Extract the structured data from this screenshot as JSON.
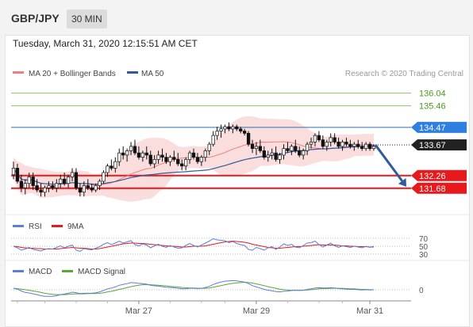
{
  "header": {
    "symbol": "GBP/JPY",
    "timeframe": "30 MIN",
    "timestamp": "Tuesday, March 31, 2020 12:15:51 AM CET"
  },
  "legend": {
    "ma20": "MA 20 + Bollinger Bands",
    "ma50": "MA 50",
    "credit": "Research © 2020 Trading Central",
    "rsi": "RSI",
    "rsi9": "9MA",
    "macd": "MACD",
    "macd_signal": "MACD Signal"
  },
  "colors": {
    "ma20": "#f08080",
    "ma50": "#2f5b9a",
    "bands": "#fadada",
    "resistance": "#8dc26f",
    "resistance_text": "#4a9a1c",
    "pivot": "#2f6fb0",
    "pivot_tag": "#2f7fe0",
    "support": "#e8191c",
    "last_tag": "#222222",
    "rsi": "#5b7ed6",
    "rsi9": "#e8191c",
    "macd": "#5b7ed6",
    "macd_signal": "#5aa83a",
    "candle": "#111111",
    "arrow": "#2f5b9a"
  },
  "chart_data": {
    "type": "candlestick",
    "price_range": [
      130.8,
      136.5
    ],
    "levels": {
      "resistance_2": "136.04",
      "resistance_1": "135.46",
      "pivot": "134.47",
      "last": "133.67",
      "support_1": "132.26",
      "support_2": "131.68"
    },
    "rsi_levels": [
      "70",
      "50",
      "30"
    ],
    "macd_zero_label": "0",
    "x_labels": [
      "Mar 27",
      "Mar 29",
      "Mar 31"
    ],
    "forecast": "bearish",
    "candles": [
      [
        132.3,
        132.9,
        132.1,
        132.6
      ],
      [
        132.6,
        132.8,
        131.9,
        132.0
      ],
      [
        132.0,
        132.3,
        131.5,
        131.7
      ],
      [
        131.7,
        132.1,
        131.4,
        131.9
      ],
      [
        131.9,
        132.4,
        131.7,
        132.2
      ],
      [
        132.2,
        132.4,
        131.6,
        131.8
      ],
      [
        131.8,
        132.1,
        131.5,
        131.6
      ],
      [
        131.6,
        131.9,
        131.3,
        131.5
      ],
      [
        131.5,
        131.8,
        131.3,
        131.7
      ],
      [
        131.7,
        132.0,
        131.5,
        131.8
      ],
      [
        131.8,
        132.0,
        131.6,
        131.7
      ],
      [
        131.7,
        132.1,
        131.5,
        131.9
      ],
      [
        131.9,
        132.3,
        131.7,
        132.1
      ],
      [
        132.1,
        132.4,
        131.8,
        131.9
      ],
      [
        131.9,
        132.3,
        131.7,
        132.2
      ],
      [
        132.2,
        132.6,
        132.0,
        132.4
      ],
      [
        132.4,
        132.6,
        131.6,
        131.7
      ],
      [
        131.7,
        131.9,
        131.3,
        131.5
      ],
      [
        131.5,
        132.0,
        131.3,
        131.8
      ],
      [
        131.8,
        132.1,
        131.6,
        131.7
      ],
      [
        131.7,
        131.9,
        131.5,
        131.6
      ],
      [
        131.6,
        131.9,
        131.5,
        131.8
      ],
      [
        131.8,
        132.1,
        131.6,
        132.0
      ],
      [
        132.0,
        132.5,
        131.9,
        132.4
      ],
      [
        132.4,
        132.8,
        132.2,
        132.7
      ],
      [
        132.7,
        133.0,
        132.5,
        132.6
      ],
      [
        132.6,
        133.1,
        132.4,
        132.9
      ],
      [
        132.9,
        133.5,
        132.7,
        133.3
      ],
      [
        133.3,
        133.6,
        133.0,
        133.2
      ],
      [
        133.2,
        133.5,
        132.9,
        133.4
      ],
      [
        133.4,
        133.8,
        133.2,
        133.6
      ],
      [
        133.6,
        133.9,
        133.2,
        133.3
      ],
      [
        133.3,
        133.6,
        133.0,
        133.1
      ],
      [
        133.1,
        133.4,
        132.9,
        133.3
      ],
      [
        133.3,
        133.6,
        133.0,
        133.2
      ],
      [
        133.2,
        133.4,
        132.7,
        132.8
      ],
      [
        132.8,
        133.2,
        132.6,
        133.0
      ],
      [
        133.0,
        133.4,
        132.8,
        133.2
      ],
      [
        133.2,
        133.5,
        132.9,
        133.1
      ],
      [
        133.1,
        133.3,
        132.8,
        132.9
      ],
      [
        132.9,
        133.2,
        132.7,
        133.1
      ],
      [
        133.1,
        133.4,
        132.9,
        133.0
      ],
      [
        133.0,
        133.3,
        132.7,
        132.8
      ],
      [
        132.8,
        133.0,
        132.5,
        132.7
      ],
      [
        132.7,
        133.1,
        132.5,
        133.0
      ],
      [
        133.0,
        133.4,
        132.8,
        133.3
      ],
      [
        133.3,
        133.5,
        133.0,
        133.1
      ],
      [
        133.1,
        133.3,
        132.8,
        132.9
      ],
      [
        132.9,
        133.2,
        132.7,
        133.1
      ],
      [
        133.1,
        133.5,
        132.9,
        133.4
      ],
      [
        133.4,
        133.8,
        133.2,
        133.7
      ],
      [
        133.7,
        134.3,
        133.6,
        134.1
      ],
      [
        134.1,
        134.5,
        133.9,
        134.3
      ],
      [
        134.3,
        134.6,
        134.0,
        134.4
      ],
      [
        134.4,
        134.6,
        134.2,
        134.5
      ],
      [
        134.5,
        134.7,
        134.3,
        134.4
      ],
      [
        134.4,
        134.6,
        134.2,
        134.5
      ],
      [
        134.5,
        134.6,
        134.3,
        134.4
      ],
      [
        134.4,
        134.5,
        134.2,
        134.3
      ],
      [
        134.3,
        134.4,
        134.1,
        134.2
      ],
      [
        134.2,
        134.3,
        133.6,
        133.7
      ],
      [
        133.7,
        133.9,
        133.3,
        133.5
      ],
      [
        133.5,
        133.8,
        133.2,
        133.6
      ],
      [
        133.6,
        133.9,
        133.3,
        133.4
      ],
      [
        133.4,
        133.6,
        133.0,
        133.1
      ],
      [
        133.1,
        133.4,
        132.9,
        133.2
      ],
      [
        133.2,
        133.5,
        133.0,
        133.3
      ],
      [
        133.3,
        133.6,
        132.9,
        133.0
      ],
      [
        133.0,
        133.3,
        132.8,
        133.2
      ],
      [
        133.2,
        133.7,
        133.0,
        133.5
      ],
      [
        133.5,
        133.8,
        133.3,
        133.4
      ],
      [
        133.4,
        133.7,
        133.2,
        133.6
      ],
      [
        133.6,
        133.9,
        133.3,
        133.4
      ],
      [
        133.4,
        133.6,
        133.1,
        133.2
      ],
      [
        133.2,
        133.5,
        133.0,
        133.4
      ],
      [
        133.4,
        133.8,
        133.2,
        133.7
      ],
      [
        133.7,
        134.0,
        133.5,
        133.8
      ],
      [
        133.8,
        134.2,
        133.6,
        134.1
      ],
      [
        134.1,
        134.3,
        133.8,
        133.9
      ],
      [
        133.9,
        134.1,
        133.5,
        133.6
      ],
      [
        133.6,
        133.9,
        133.4,
        133.8
      ],
      [
        133.8,
        134.2,
        133.6,
        134.0
      ],
      [
        134.0,
        134.2,
        133.7,
        133.8
      ],
      [
        133.8,
        134.0,
        133.5,
        133.6
      ],
      [
        133.6,
        133.9,
        133.4,
        133.8
      ],
      [
        133.8,
        134.0,
        133.6,
        133.7
      ],
      [
        133.7,
        133.9,
        133.5,
        133.6
      ],
      [
        133.6,
        133.8,
        133.4,
        133.7
      ],
      [
        133.7,
        133.9,
        133.5,
        133.6
      ],
      [
        133.6,
        133.8,
        133.4,
        133.5
      ],
      [
        133.5,
        133.8,
        133.4,
        133.7
      ],
      [
        133.7,
        133.8,
        133.4,
        133.5
      ],
      [
        133.5,
        133.7,
        133.4,
        133.6
      ]
    ],
    "rsi_series": [
      50,
      46,
      40,
      43,
      47,
      42,
      40,
      38,
      42,
      44,
      43,
      47,
      51,
      46,
      50,
      53,
      40,
      37,
      44,
      42,
      41,
      45,
      49,
      55,
      59,
      54,
      58,
      63,
      58,
      61,
      64,
      54,
      51,
      56,
      53,
      46,
      51,
      55,
      50,
      47,
      52,
      48,
      45,
      46,
      52,
      57,
      52,
      48,
      53,
      58,
      63,
      69,
      66,
      65,
      64,
      59,
      62,
      57,
      54,
      52,
      42,
      40,
      47,
      44,
      40,
      46,
      49,
      42,
      48,
      56,
      52,
      55,
      48,
      46,
      52,
      58,
      59,
      63,
      54,
      48,
      53,
      58,
      51,
      47,
      51,
      49,
      47,
      50,
      48,
      46,
      50,
      47,
      50
    ],
    "rsi9_series": [
      50,
      49,
      47,
      46,
      45,
      45,
      44,
      44,
      43,
      43,
      43,
      43,
      44,
      45,
      46,
      47,
      46,
      45,
      45,
      44,
      43,
      43,
      44,
      46,
      48,
      50,
      52,
      54,
      56,
      57,
      58,
      58,
      57,
      57,
      56,
      55,
      54,
      53,
      52,
      51,
      50,
      50,
      49,
      48,
      48,
      49,
      50,
      50,
      50,
      51,
      53,
      55,
      57,
      59,
      61,
      62,
      63,
      62,
      61,
      60,
      58,
      55,
      53,
      51,
      49,
      47,
      46,
      45,
      45,
      46,
      47,
      48,
      49,
      49,
      50,
      51,
      52,
      53,
      54,
      53,
      53,
      53,
      53,
      52,
      51,
      51,
      50,
      50,
      49,
      49,
      49,
      48,
      48
    ],
    "macd_series": [
      0.05,
      0.02,
      -0.05,
      -0.1,
      -0.12,
      -0.15,
      -0.18,
      -0.22,
      -0.24,
      -0.24,
      -0.24,
      -0.22,
      -0.18,
      -0.16,
      -0.13,
      -0.09,
      -0.11,
      -0.14,
      -0.13,
      -0.13,
      -0.13,
      -0.11,
      -0.08,
      -0.03,
      0.03,
      0.06,
      0.1,
      0.16,
      0.19,
      0.22,
      0.26,
      0.25,
      0.23,
      0.22,
      0.2,
      0.16,
      0.14,
      0.13,
      0.11,
      0.09,
      0.08,
      0.07,
      0.05,
      0.03,
      0.03,
      0.05,
      0.05,
      0.04,
      0.05,
      0.08,
      0.12,
      0.19,
      0.24,
      0.28,
      0.31,
      0.32,
      0.33,
      0.32,
      0.3,
      0.28,
      0.22,
      0.15,
      0.1,
      0.06,
      0.01,
      -0.02,
      -0.04,
      -0.07,
      -0.08,
      -0.06,
      -0.05,
      -0.03,
      -0.02,
      -0.03,
      -0.02,
      0.01,
      0.03,
      0.06,
      0.07,
      0.06,
      0.06,
      0.07,
      0.06,
      0.04,
      0.03,
      0.02,
      0.01,
      0.01,
      0.0,
      -0.01,
      0.0,
      -0.01,
      0.0
    ],
    "macd_signal_series": [
      0.05,
      0.04,
      0.02,
      0.0,
      -0.02,
      -0.05,
      -0.07,
      -0.1,
      -0.13,
      -0.15,
      -0.17,
      -0.18,
      -0.18,
      -0.18,
      -0.17,
      -0.16,
      -0.15,
      -0.15,
      -0.15,
      -0.14,
      -0.14,
      -0.14,
      -0.13,
      -0.11,
      -0.08,
      -0.06,
      -0.03,
      0.01,
      0.04,
      0.08,
      0.11,
      0.14,
      0.16,
      0.18,
      0.18,
      0.18,
      0.17,
      0.16,
      0.15,
      0.14,
      0.12,
      0.11,
      0.1,
      0.08,
      0.07,
      0.06,
      0.06,
      0.05,
      0.05,
      0.05,
      0.06,
      0.09,
      0.12,
      0.15,
      0.18,
      0.21,
      0.23,
      0.25,
      0.26,
      0.27,
      0.26,
      0.24,
      0.21,
      0.18,
      0.15,
      0.11,
      0.08,
      0.05,
      0.02,
      0.0,
      -0.01,
      -0.02,
      -0.02,
      -0.02,
      -0.02,
      -0.01,
      0.0,
      0.01,
      0.03,
      0.04,
      0.04,
      0.05,
      0.05,
      0.05,
      0.05,
      0.04,
      0.03,
      0.03,
      0.02,
      0.01,
      0.01,
      0.0,
      0.0
    ]
  }
}
